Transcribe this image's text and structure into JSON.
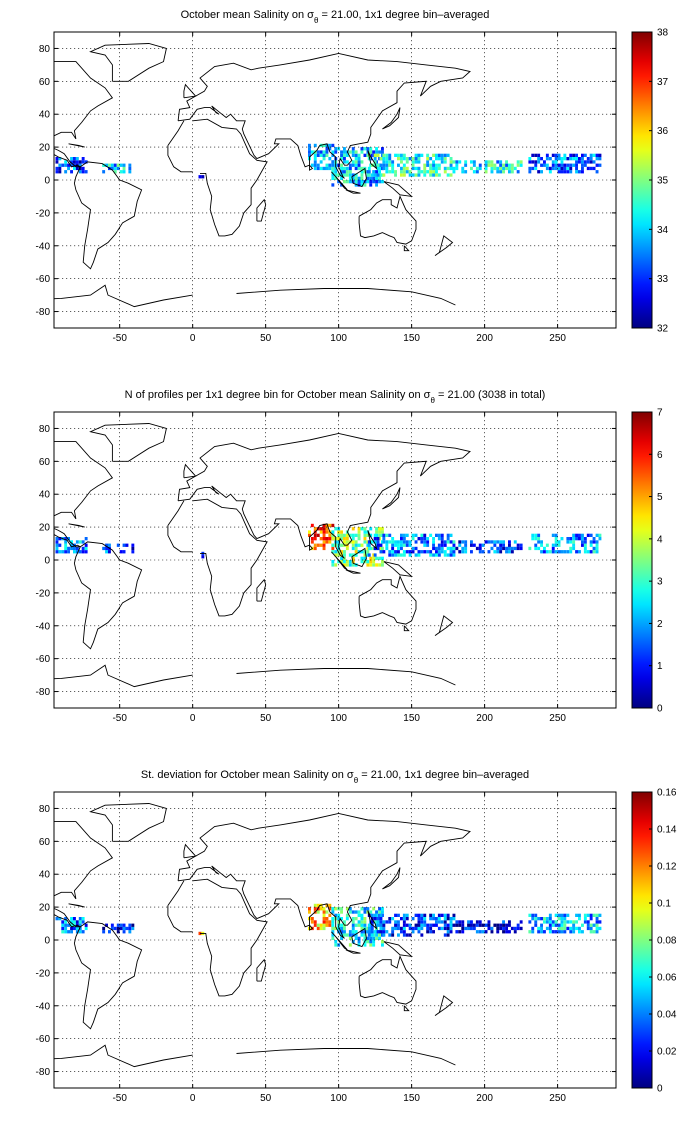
{
  "chart_data": [
    {
      "type": "heatmap",
      "title": "October mean Salinity on σθ = 21.00, 1x1 degree bin–averaged",
      "title_parts": {
        "pre": "October mean Salinity on σ",
        "sub": "θ",
        "post": " = 21.00, 1x1 degree bin–averaged"
      },
      "xlim": [
        -95,
        290
      ],
      "ylim": [
        -90,
        90
      ],
      "xticks": [
        -50,
        0,
        50,
        100,
        150,
        200,
        250
      ],
      "yticks": [
        -80,
        -60,
        -40,
        -20,
        0,
        20,
        40,
        60,
        80
      ],
      "colorbar": {
        "min": 32,
        "max": 38,
        "ticks": [
          32,
          33,
          34,
          35,
          36,
          37,
          38
        ]
      },
      "grid": true,
      "regions": [
        {
          "lon": [
            -94,
            -72
          ],
          "lat": [
            4,
            14
          ],
          "value": 33.2
        },
        {
          "lon": [
            -62,
            -40
          ],
          "lat": [
            4,
            10
          ],
          "value": 34.0
        },
        {
          "lon": [
            4,
            8
          ],
          "lat": [
            1,
            5
          ],
          "value": 32.3
        },
        {
          "lon": [
            79,
            97
          ],
          "lat": [
            6,
            22
          ],
          "value": 33.8
        },
        {
          "lon": [
            95,
            130
          ],
          "lat": [
            -4,
            20
          ],
          "value": 33.9
        },
        {
          "lon": [
            120,
            180
          ],
          "lat": [
            2,
            16
          ],
          "value": 34.4
        },
        {
          "lon": [
            180,
            225
          ],
          "lat": [
            4,
            12
          ],
          "value": 34.2
        },
        {
          "lon": [
            230,
            280
          ],
          "lat": [
            4,
            16
          ],
          "value": 33.3
        }
      ]
    },
    {
      "type": "heatmap",
      "title": "N of profiles per 1x1 degree bin for October mean Salinity on σθ = 21.00 (3038 in total)",
      "title_parts": {
        "pre": "N of profiles per 1x1 degree bin for October mean Salinity on σ",
        "sub": "θ",
        "post": " = 21.00 (3038 in total)"
      },
      "xlim": [
        -95,
        290
      ],
      "ylim": [
        -90,
        90
      ],
      "xticks": [
        -50,
        0,
        50,
        100,
        150,
        200,
        250
      ],
      "yticks": [
        -80,
        -60,
        -40,
        -20,
        0,
        20,
        40,
        60,
        80
      ],
      "colorbar": {
        "min": 0,
        "max": 7,
        "ticks": [
          0,
          1,
          2,
          3,
          4,
          5,
          6,
          7
        ]
      },
      "grid": true,
      "regions": [
        {
          "lon": [
            -94,
            -72
          ],
          "lat": [
            4,
            14
          ],
          "value": 1.8
        },
        {
          "lon": [
            -62,
            -40
          ],
          "lat": [
            4,
            10
          ],
          "value": 1.2
        },
        {
          "lon": [
            4,
            8
          ],
          "lat": [
            1,
            5
          ],
          "value": 1.0
        },
        {
          "lon": [
            79,
            97
          ],
          "lat": [
            6,
            22
          ],
          "value": 5.5
        },
        {
          "lon": [
            95,
            130
          ],
          "lat": [
            -4,
            20
          ],
          "value": 3.5
        },
        {
          "lon": [
            120,
            180
          ],
          "lat": [
            2,
            16
          ],
          "value": 1.8
        },
        {
          "lon": [
            180,
            225
          ],
          "lat": [
            4,
            12
          ],
          "value": 1.3
        },
        {
          "lon": [
            230,
            280
          ],
          "lat": [
            4,
            16
          ],
          "value": 2.0
        }
      ]
    },
    {
      "type": "heatmap",
      "title": "St. deviation for October mean Salinity on σθ = 21.00, 1x1 degree bin–averaged",
      "title_parts": {
        "pre": "St. deviation for October mean Salinity on σ",
        "sub": "θ",
        "post": " = 21.00, 1x1 degree bin–averaged"
      },
      "xlim": [
        -95,
        290
      ],
      "ylim": [
        -90,
        90
      ],
      "xticks": [
        -50,
        0,
        50,
        100,
        150,
        200,
        250
      ],
      "yticks": [
        -80,
        -60,
        -40,
        -20,
        0,
        20,
        40,
        60,
        80
      ],
      "colorbar": {
        "min": 0,
        "max": 0.16,
        "ticks": [
          0,
          0.02,
          0.04,
          0.06,
          0.08,
          0.1,
          0.12,
          0.14,
          0.16
        ]
      },
      "grid": true,
      "regions": [
        {
          "lon": [
            -94,
            -72
          ],
          "lat": [
            4,
            14
          ],
          "value": 0.04
        },
        {
          "lon": [
            -62,
            -40
          ],
          "lat": [
            4,
            10
          ],
          "value": 0.02
        },
        {
          "lon": [
            4,
            8
          ],
          "lat": [
            1,
            5
          ],
          "value": 0.12
        },
        {
          "lon": [
            79,
            97
          ],
          "lat": [
            6,
            22
          ],
          "value": 0.11
        },
        {
          "lon": [
            95,
            130
          ],
          "lat": [
            -4,
            20
          ],
          "value": 0.06
        },
        {
          "lon": [
            120,
            180
          ],
          "lat": [
            2,
            16
          ],
          "value": 0.03
        },
        {
          "lon": [
            180,
            225
          ],
          "lat": [
            4,
            12
          ],
          "value": 0.02
        },
        {
          "lon": [
            230,
            280
          ],
          "lat": [
            4,
            16
          ],
          "value": 0.05
        }
      ]
    }
  ]
}
